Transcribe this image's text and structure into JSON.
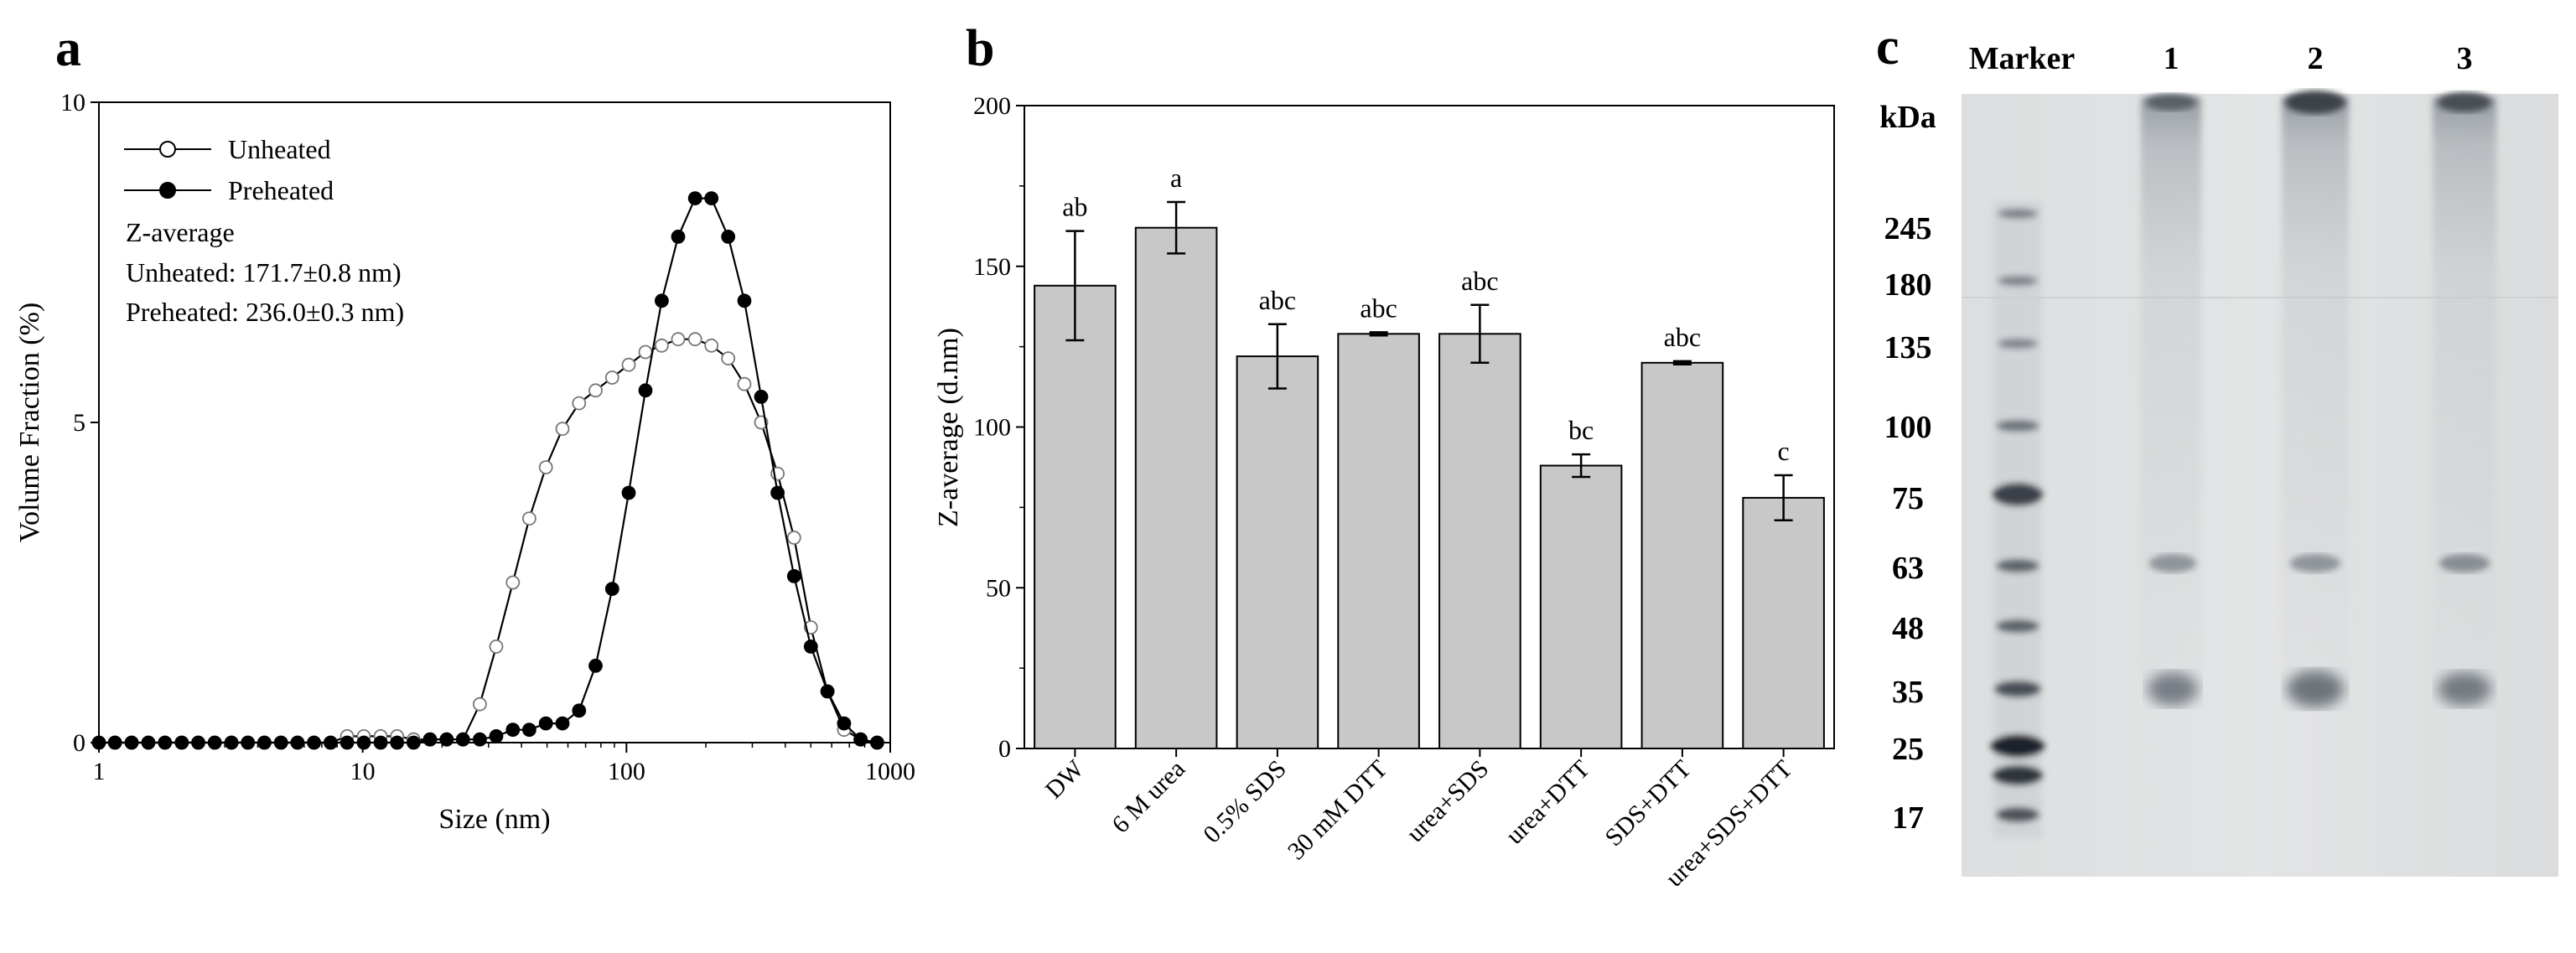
{
  "panels": {
    "a": "a",
    "b": "b",
    "c": "c"
  },
  "chart_data": [
    {
      "type": "line",
      "panel": "a",
      "title": "",
      "xlabel": "Size (nm)",
      "ylabel": "Volume Fraction (%)",
      "xscale": "log",
      "xlim": [
        1,
        1000
      ],
      "ylim": [
        0,
        10
      ],
      "xticks": [
        1,
        10,
        100,
        1000
      ],
      "xtick_labels": [
        "1",
        "10",
        "100",
        "1000"
      ],
      "yticks": [
        0,
        5,
        10
      ],
      "ytick_labels": [
        "0",
        "5",
        "10"
      ],
      "legend": {
        "position": "top-left",
        "entries": [
          {
            "label": "Unheated",
            "marker": "open-circle"
          },
          {
            "label": "Preheated",
            "marker": "filled-circle"
          }
        ]
      },
      "annotations": [
        "Z-average",
        "Unheated: 171.7±0.8 nm)",
        "Preheated: 236.0±0.3 nm)"
      ],
      "series": [
        {
          "name": "Unheated",
          "x": [
            1,
            1.15,
            1.33,
            1.54,
            1.78,
            2.06,
            2.38,
            2.75,
            3.18,
            3.67,
            4.24,
            4.9,
            5.66,
            6.54,
            7.56,
            8.73,
            10.1,
            11.7,
            13.5,
            15.6,
            18,
            20.8,
            24,
            27.8,
            32.1,
            37.1,
            42.8,
            49.5,
            57.2,
            66.1,
            76.4,
            88.3,
            102,
            118,
            136,
            157,
            182,
            210,
            243,
            280,
            324,
            374,
            432,
            500,
            578,
            668,
            772,
            892
          ],
          "values": [
            0,
            0,
            0,
            0,
            0,
            0,
            0,
            0,
            0,
            0,
            0,
            0,
            0,
            0,
            0,
            0.1,
            0.1,
            0.1,
            0.1,
            0.05,
            0.05,
            0.05,
            0.05,
            0.6,
            1.5,
            2.5,
            3.5,
            4.3,
            4.9,
            5.3,
            5.5,
            5.7,
            5.9,
            6.1,
            6.2,
            6.3,
            6.3,
            6.2,
            6.0,
            5.6,
            5.0,
            4.2,
            3.2,
            1.8,
            0.8,
            0.2,
            0.05,
            0
          ]
        },
        {
          "name": "Preheated",
          "x": [
            1,
            1.15,
            1.33,
            1.54,
            1.78,
            2.06,
            2.38,
            2.75,
            3.18,
            3.67,
            4.24,
            4.9,
            5.66,
            6.54,
            7.56,
            8.73,
            10.1,
            11.7,
            13.5,
            15.6,
            18,
            20.8,
            24,
            27.8,
            32.1,
            37.1,
            42.8,
            49.5,
            57.2,
            66.1,
            76.4,
            88.3,
            102,
            118,
            136,
            157,
            182,
            210,
            243,
            280,
            324,
            374,
            432,
            500,
            578,
            668,
            772,
            892
          ],
          "values": [
            0,
            0,
            0,
            0,
            0,
            0,
            0,
            0,
            0,
            0,
            0,
            0,
            0,
            0,
            0,
            0,
            0,
            0,
            0,
            0,
            0.05,
            0.05,
            0.05,
            0.05,
            0.1,
            0.2,
            0.2,
            0.3,
            0.3,
            0.5,
            1.2,
            2.4,
            3.9,
            5.5,
            6.9,
            7.9,
            8.5,
            8.5,
            7.9,
            6.9,
            5.4,
            3.9,
            2.6,
            1.5,
            0.8,
            0.3,
            0.05,
            0
          ]
        }
      ]
    },
    {
      "type": "bar",
      "panel": "b",
      "title": "",
      "xlabel": "",
      "ylabel": "Z-average (d.nm)",
      "ylim": [
        0,
        200
      ],
      "yticks": [
        0,
        50,
        100,
        150,
        200
      ],
      "ytick_labels": [
        "0",
        "50",
        "100",
        "150",
        "200"
      ],
      "categories": [
        "DW",
        "6 M urea",
        "0.5% SDS",
        "30 mM DTT",
        "urea+SDS",
        "urea+DTT",
        "SDS+DTT",
        "urea+SDS+DTT"
      ],
      "values": [
        144,
        162,
        122,
        129,
        129,
        88,
        120,
        78
      ],
      "errors": [
        17,
        8,
        10,
        0.5,
        9,
        3.5,
        0.5,
        7
      ],
      "letters": [
        "ab",
        "a",
        "abc",
        "abc",
        "abc",
        "bc",
        "abc",
        "c"
      ],
      "bar_color": "#c8c8c8"
    }
  ],
  "gel": {
    "header_labels": [
      "Marker",
      "1",
      "2",
      "3"
    ],
    "unit_label": "kDa",
    "marker_sizes": [
      "245",
      "180",
      "135",
      "100",
      "75",
      "63",
      "48",
      "35",
      "25",
      "17"
    ]
  }
}
